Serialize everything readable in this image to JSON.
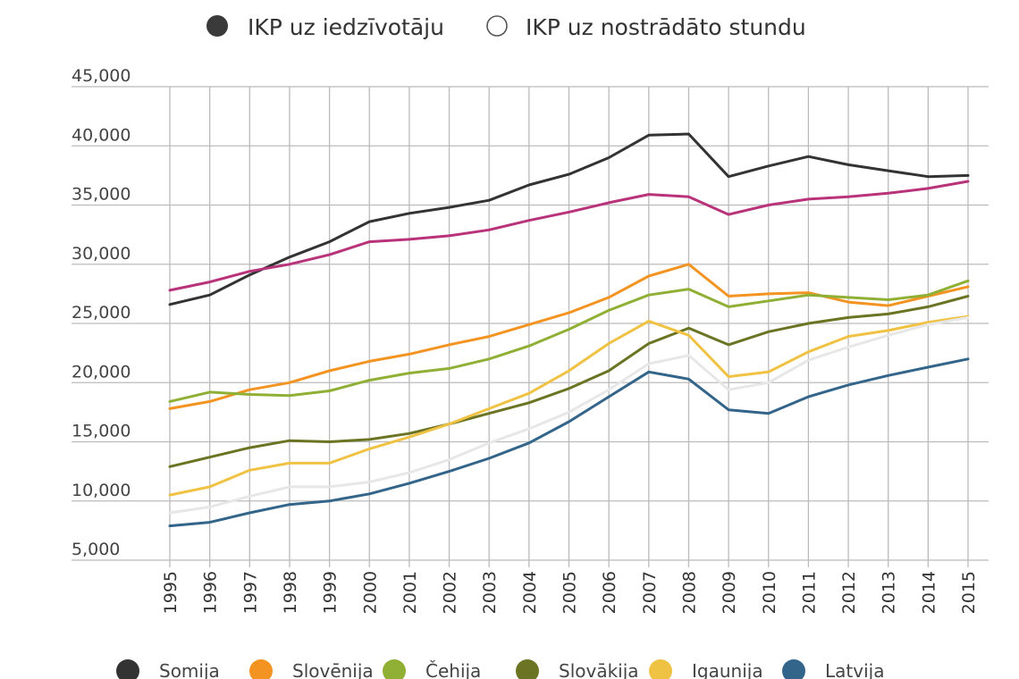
{
  "colors": {
    "gridline": "#bbbbbb",
    "toggle_active": "#3a3a3a",
    "toggle_inactive": "#ffffff"
  },
  "toggles": [
    {
      "label": "IKP uz iedzīvotāju",
      "active": true
    },
    {
      "label": "IKP uz nostrādāto stundu",
      "active": false
    }
  ],
  "chart_data": {
    "type": "line",
    "title": "",
    "xlabel": "",
    "ylabel": "",
    "ylim": [
      5000,
      45000
    ],
    "yticks": [
      5000,
      10000,
      15000,
      20000,
      25000,
      30000,
      35000,
      40000,
      45000
    ],
    "ytick_labels": [
      "5,000",
      "10,000",
      "15,000",
      "20,000",
      "25,000",
      "30,000",
      "35,000",
      "40,000",
      "45,000"
    ],
    "grid": true,
    "legend_position": "bottom",
    "x": [
      "1995",
      "1996",
      "1997",
      "1998",
      "1999",
      "2000",
      "2001",
      "2002",
      "2003",
      "2004",
      "2005",
      "2006",
      "2007",
      "2008",
      "2009",
      "2010",
      "2011",
      "2012",
      "2013",
      "2014",
      "2015"
    ],
    "series": [
      {
        "name": "Somija",
        "color": "#333333",
        "legend": true,
        "values": [
          26600,
          27400,
          29100,
          30600,
          31900,
          33600,
          34300,
          34800,
          35400,
          36700,
          37600,
          39000,
          40900,
          41000,
          37400,
          38300,
          39100,
          38400,
          37900,
          37400,
          37500
        ]
      },
      {
        "name": "",
        "color": "#b8337a",
        "legend": false,
        "values": [
          27800,
          28500,
          29400,
          30000,
          30800,
          31900,
          32100,
          32400,
          32900,
          33700,
          34400,
          35200,
          35900,
          35700,
          34200,
          35000,
          35500,
          35700,
          36000,
          36400,
          37000
        ]
      },
      {
        "name": "Slovēnija",
        "color": "#f39422",
        "legend": true,
        "values": [
          17800,
          18400,
          19400,
          20000,
          21000,
          21800,
          22400,
          23200,
          23900,
          24900,
          25900,
          27200,
          29000,
          30000,
          27300,
          27500,
          27600,
          26800,
          26500,
          27300,
          28100
        ]
      },
      {
        "name": "Čehija",
        "color": "#8fb035",
        "legend": true,
        "values": [
          18400,
          19200,
          19000,
          18900,
          19300,
          20200,
          20800,
          21200,
          22000,
          23100,
          24500,
          26100,
          27400,
          27900,
          26400,
          26900,
          27400,
          27200,
          27000,
          27400,
          28600
        ]
      },
      {
        "name": "Slovākija",
        "color": "#6b7423",
        "legend": true,
        "values": [
          12900,
          13700,
          14500,
          15100,
          15000,
          15200,
          15700,
          16500,
          17400,
          18300,
          19500,
          21000,
          23300,
          24600,
          23200,
          24300,
          25000,
          25500,
          25800,
          26400,
          27300
        ]
      },
      {
        "name": "Igaunija",
        "color": "#f0c244",
        "legend": true,
        "values": [
          10500,
          11200,
          12600,
          13200,
          13200,
          14400,
          15400,
          16500,
          17800,
          19100,
          21000,
          23300,
          25200,
          24000,
          20500,
          20900,
          22600,
          23900,
          24400,
          25100,
          25600
        ]
      },
      {
        "name": "",
        "color": "#e7e7e7",
        "legend": false,
        "values": [
          9000,
          9500,
          10400,
          11200,
          11200,
          11600,
          12400,
          13500,
          14900,
          16100,
          17500,
          19400,
          21600,
          22300,
          19400,
          20000,
          21900,
          23000,
          24000,
          24900,
          25500
        ]
      },
      {
        "name": "Latvija",
        "color": "#33658a",
        "legend": true,
        "values": [
          7900,
          8200,
          9000,
          9700,
          10000,
          10600,
          11500,
          12500,
          13600,
          14900,
          16700,
          18800,
          20900,
          20300,
          17700,
          17400,
          18800,
          19800,
          20600,
          21300,
          22000
        ]
      }
    ]
  }
}
